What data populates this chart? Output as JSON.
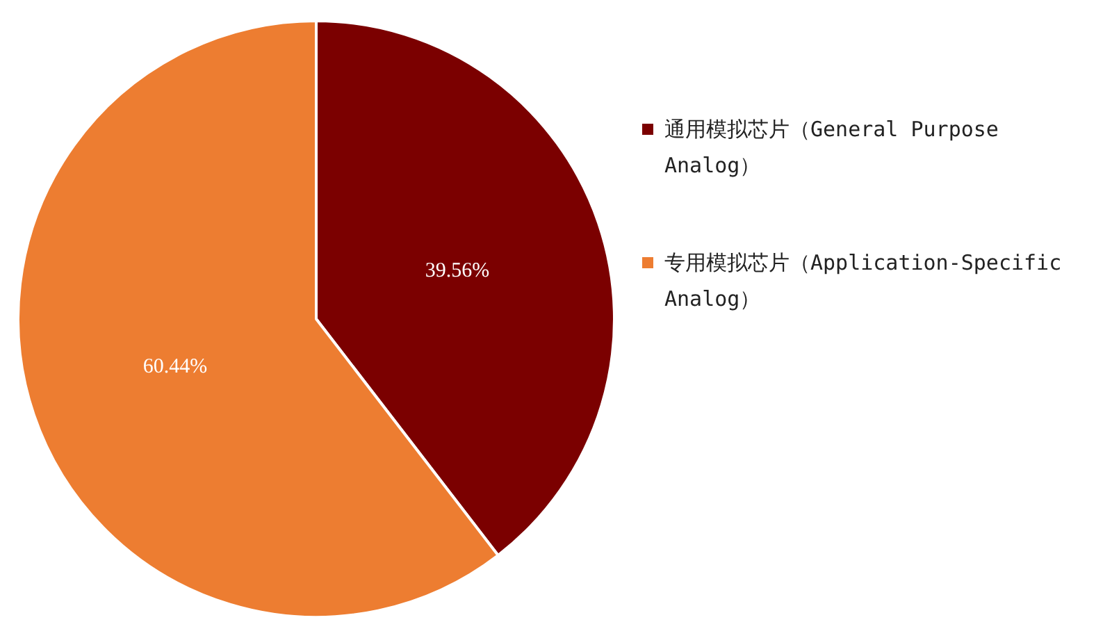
{
  "chart_data": {
    "type": "pie",
    "categories": [
      "通用模拟芯片（General Purpose Analog）",
      "专用模拟芯片（Application-Specific Analog）"
    ],
    "values": [
      39.56,
      60.44
    ],
    "colors": [
      "#7b0000",
      "#ed7d31"
    ],
    "value_labels": [
      "39.56%",
      "60.44%"
    ],
    "legend": "right"
  }
}
